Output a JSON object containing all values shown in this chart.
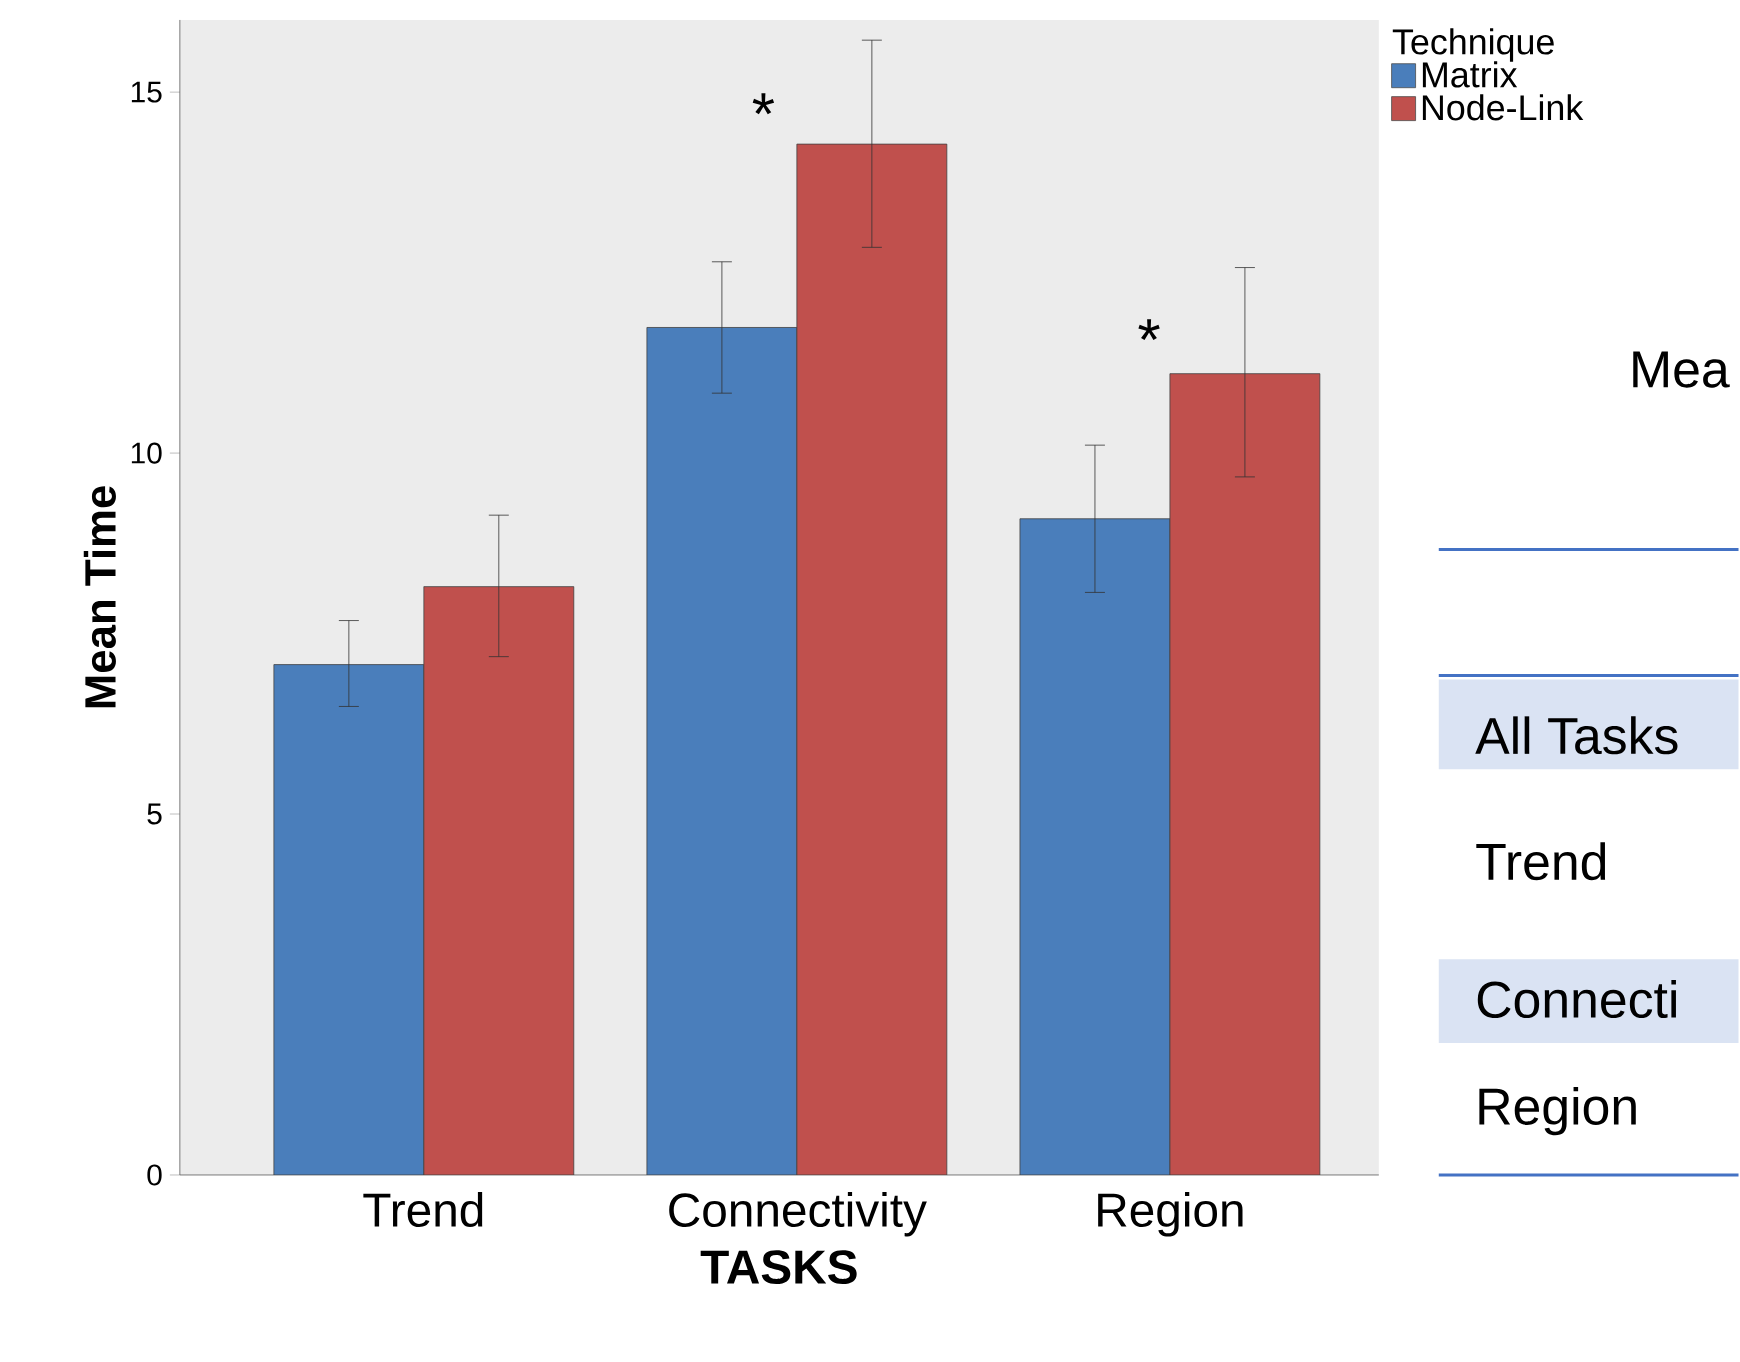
{
  "chart_data": {
    "type": "bar",
    "xlabel": "TASKS",
    "ylabel": "Mean Time",
    "legend_title": "Technique",
    "legend": "top right",
    "categories": [
      "Trend",
      "Connectivity",
      "Region"
    ],
    "ylim": [
      0,
      16
    ],
    "yticks": [
      0,
      5,
      10,
      15
    ],
    "series": [
      {
        "name": "Matrix",
        "color": "#4a7ebb",
        "values": [
          7.07,
          11.74,
          9.09
        ],
        "errors": [
          [
            6.49,
            7.68
          ],
          [
            10.83,
            12.65
          ],
          [
            8.07,
            10.11
          ]
        ]
      },
      {
        "name": "Node-Link",
        "color": "#c0504d",
        "values": [
          8.15,
          14.28,
          11.1
        ],
        "errors": [
          [
            7.18,
            9.14
          ],
          [
            12.85,
            15.72
          ],
          [
            9.67,
            12.57
          ]
        ]
      }
    ],
    "annotations": [
      "*",
      "*",
      "Mea",
      "All Tasks",
      "Trend",
      "Connecti",
      "Region"
    ]
  }
}
